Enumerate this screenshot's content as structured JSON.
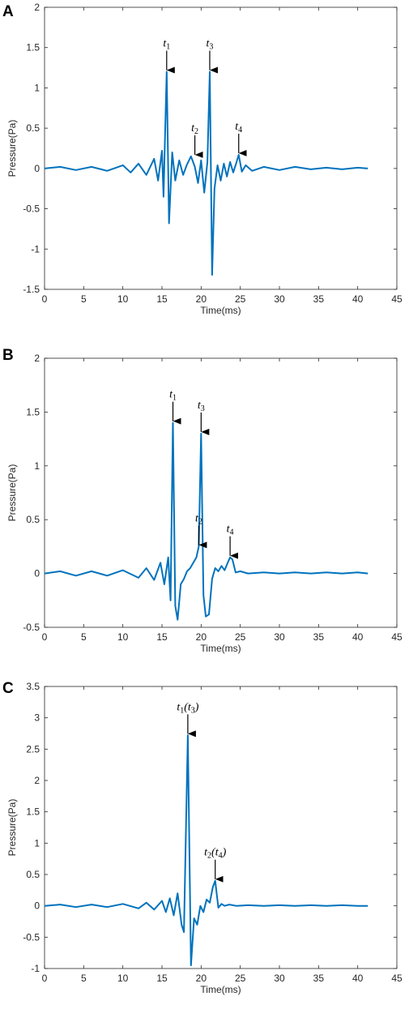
{
  "chart_data": [
    {
      "panel": "A",
      "type": "line",
      "xlabel": "Time(ms)",
      "ylabel": "Pressure(Pa)",
      "xlim": [
        0,
        45
      ],
      "ylim": [
        -1.5,
        2
      ],
      "xticks": [
        0,
        5,
        10,
        15,
        20,
        25,
        30,
        35,
        40,
        45
      ],
      "yticks": [
        -1.5,
        -1,
        -0.5,
        0,
        0.5,
        1,
        1.5,
        2
      ],
      "color": "#0072BD",
      "series": [
        {
          "x": [
            0,
            2,
            4,
            6,
            8,
            10,
            11,
            12,
            13,
            14,
            14.5,
            15,
            15.2,
            15.6,
            15.9,
            16.3,
            16.7,
            17.2,
            17.7,
            18.2,
            18.7,
            19.2,
            19.6,
            20.0,
            20.4,
            20.8,
            21.1,
            21.4,
            21.7,
            22.1,
            22.5,
            22.9,
            23.3,
            23.7,
            24.1,
            24.5,
            24.8,
            25.2,
            25.7,
            26.5,
            28,
            30,
            32,
            34,
            36,
            38,
            40,
            41.3
          ],
          "y": [
            0,
            0.02,
            -0.02,
            0.02,
            -0.03,
            0.04,
            -0.05,
            0.06,
            -0.08,
            0.12,
            -0.15,
            0.22,
            -0.35,
            1.2,
            -0.68,
            0.2,
            -0.15,
            0.1,
            -0.08,
            0.05,
            0.15,
            0.02,
            -0.18,
            0.1,
            -0.3,
            0.08,
            1.2,
            -1.32,
            -0.25,
            0.04,
            -0.15,
            0.06,
            -0.1,
            0.08,
            -0.05,
            0.07,
            0.17,
            -0.04,
            0.04,
            -0.03,
            0.02,
            -0.02,
            0.02,
            -0.01,
            0.01,
            -0.01,
            0.01,
            0
          ]
        }
      ],
      "annotations": [
        {
          "base": "t",
          "sub": "1",
          "suffix": "",
          "x": 15.6,
          "y": 1.2
        },
        {
          "base": "t",
          "sub": "2",
          "suffix": "",
          "x": 19.2,
          "y": 0.15
        },
        {
          "base": "t",
          "sub": "3",
          "suffix": "",
          "x": 21.1,
          "y": 1.2
        },
        {
          "base": "t",
          "sub": "4",
          "suffix": "",
          "x": 24.8,
          "y": 0.17
        }
      ]
    },
    {
      "panel": "B",
      "type": "line",
      "xlabel": "Time(ms)",
      "ylabel": "Pressure(Pa)",
      "xlim": [
        0,
        45
      ],
      "ylim": [
        -0.5,
        2
      ],
      "xticks": [
        0,
        5,
        10,
        15,
        20,
        25,
        30,
        35,
        40,
        45
      ],
      "yticks": [
        -0.5,
        0,
        0.5,
        1,
        1.5,
        2
      ],
      "color": "#0072BD",
      "series": [
        {
          "x": [
            0,
            2,
            4,
            6,
            8,
            10,
            12,
            13,
            14,
            14.8,
            15.3,
            15.8,
            16.1,
            16.4,
            16.7,
            17.0,
            17.4,
            17.8,
            18.2,
            18.6,
            19.0,
            19.4,
            19.7,
            20.0,
            20.3,
            20.6,
            21.0,
            21.4,
            21.8,
            22.2,
            22.6,
            23.0,
            23.4,
            23.7,
            24.0,
            24.4,
            25,
            26,
            28,
            30,
            32,
            34,
            36,
            38,
            40,
            41.3
          ],
          "y": [
            0,
            0.02,
            -0.02,
            0.02,
            -0.02,
            0.03,
            -0.04,
            0.05,
            -0.06,
            0.1,
            -0.1,
            0.15,
            -0.25,
            1.4,
            -0.3,
            -0.43,
            -0.1,
            -0.05,
            0.02,
            0.05,
            0.1,
            0.15,
            0.25,
            1.3,
            -0.2,
            -0.4,
            -0.38,
            -0.05,
            0.05,
            0.02,
            0.07,
            0.03,
            0.1,
            0.15,
            0.13,
            0.01,
            0.02,
            0,
            0.01,
            0,
            0.01,
            0,
            0.01,
            0,
            0.01,
            0
          ]
        }
      ],
      "annotations": [
        {
          "base": "t",
          "sub": "1",
          "suffix": "",
          "x": 16.4,
          "y": 1.4
        },
        {
          "base": "t",
          "sub": "2",
          "suffix": "",
          "x": 19.7,
          "y": 0.25
        },
        {
          "base": "t",
          "sub": "3",
          "suffix": "",
          "x": 20.0,
          "y": 1.3
        },
        {
          "base": "t",
          "sub": "4",
          "suffix": "",
          "x": 23.7,
          "y": 0.15
        }
      ]
    },
    {
      "panel": "C",
      "type": "line",
      "xlabel": "Time(ms)",
      "ylabel": "Pressure(Pa)",
      "xlim": [
        0,
        45
      ],
      "ylim": [
        -1,
        3.5
      ],
      "xticks": [
        0,
        5,
        10,
        15,
        20,
        25,
        30,
        35,
        40,
        45
      ],
      "yticks": [
        -1,
        -0.5,
        0,
        0.5,
        1,
        1.5,
        2,
        2.5,
        3,
        3.5
      ],
      "color": "#0072BD",
      "series": [
        {
          "x": [
            0,
            2,
            4,
            6,
            8,
            10,
            12,
            13,
            14,
            15,
            15.5,
            16,
            16.5,
            17,
            17.5,
            17.8,
            18.3,
            18.7,
            19.1,
            19.5,
            19.9,
            20.3,
            20.7,
            21.1,
            21.5,
            21.8,
            22.2,
            22.6,
            23.0,
            23.6,
            24.5,
            26,
            28,
            30,
            32,
            34,
            36,
            38,
            40,
            41.3
          ],
          "y": [
            0,
            0.02,
            -0.02,
            0.02,
            -0.02,
            0.03,
            -0.04,
            0.05,
            -0.06,
            0.08,
            -0.1,
            0.12,
            -0.15,
            0.2,
            -0.3,
            -0.42,
            2.72,
            -0.95,
            -0.2,
            -0.3,
            0.0,
            -0.1,
            0.1,
            0.05,
            0.3,
            0.4,
            -0.03,
            0.03,
            0.0,
            0.02,
            0.0,
            0.01,
            0,
            0.01,
            0,
            0.01,
            0,
            0.01,
            0,
            0
          ]
        }
      ],
      "annotations": [
        {
          "base": "t",
          "sub": "1",
          "suffix": "(t3)",
          "x": 18.3,
          "y": 2.72
        },
        {
          "base": "t",
          "sub": "2",
          "suffix": "(t4)",
          "x": 21.8,
          "y": 0.4
        }
      ]
    }
  ]
}
